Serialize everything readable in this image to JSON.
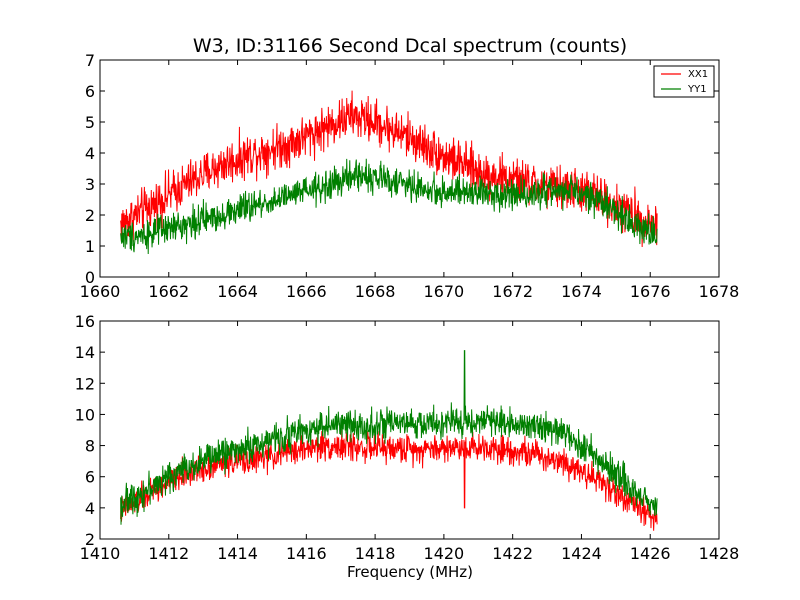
{
  "chart_data": [
    {
      "type": "line",
      "title": "W3, ID:31166 Second Dcal spectrum (counts)",
      "xlabel": "",
      "ylabel": "",
      "xlim": [
        1660,
        1678
      ],
      "ylim": [
        0,
        7
      ],
      "xticks": [
        1660,
        1662,
        1664,
        1666,
        1668,
        1670,
        1672,
        1674,
        1676,
        1678
      ],
      "yticks": [
        0,
        1,
        2,
        3,
        4,
        5,
        6,
        7
      ],
      "x_range": [
        1660.6,
        1676.2
      ],
      "grid": false,
      "legend": {
        "placement": "top-right",
        "entries": [
          "XX1",
          "YY1"
        ]
      },
      "series": [
        {
          "name": "XX1",
          "color": "#ff0000",
          "noise": 0.35,
          "envelope_x": [
            1660.6,
            1661.5,
            1662.5,
            1663.5,
            1664.5,
            1665.5,
            1666.5,
            1667.3,
            1668.0,
            1669.0,
            1670.0,
            1671.0,
            1672.0,
            1673.0,
            1674.0,
            1674.7,
            1675.3,
            1676.2
          ],
          "envelope_y": [
            1.7,
            2.3,
            3.0,
            3.6,
            4.0,
            4.3,
            4.8,
            5.2,
            5.0,
            4.5,
            3.9,
            3.4,
            3.1,
            2.9,
            2.8,
            2.5,
            2.1,
            1.7
          ]
        },
        {
          "name": "YY1",
          "color": "#008000",
          "noise": 0.25,
          "envelope_x": [
            1660.6,
            1661.5,
            1662.5,
            1663.5,
            1664.5,
            1665.5,
            1666.5,
            1667.5,
            1668.5,
            1669.5,
            1670.5,
            1671.5,
            1672.5,
            1673.5,
            1674.5,
            1675.3,
            1676.2
          ],
          "envelope_y": [
            1.3,
            1.4,
            1.7,
            2.0,
            2.3,
            2.6,
            2.9,
            3.3,
            3.1,
            2.8,
            2.7,
            2.7,
            2.7,
            2.8,
            2.5,
            1.9,
            1.3
          ]
        }
      ]
    },
    {
      "type": "line",
      "title": "",
      "xlabel": "Frequency (MHz)",
      "ylabel": "",
      "xlim": [
        1410,
        1428
      ],
      "ylim": [
        2,
        16
      ],
      "xticks": [
        1410,
        1412,
        1414,
        1416,
        1418,
        1420,
        1422,
        1424,
        1426,
        1428
      ],
      "yticks": [
        2,
        4,
        6,
        8,
        10,
        12,
        14,
        16
      ],
      "x_range": [
        1410.6,
        1426.2
      ],
      "grid": false,
      "series": [
        {
          "name": "XX1",
          "color": "#ff0000",
          "noise": 0.45,
          "envelope_x": [
            1410.6,
            1411.5,
            1412.5,
            1413.5,
            1414.5,
            1415.5,
            1416.5,
            1417.5,
            1418.5,
            1419.5,
            1420.5,
            1421.5,
            1422.5,
            1423.5,
            1424.5,
            1425.3,
            1426.2
          ],
          "envelope_y": [
            3.8,
            5.0,
            6.2,
            6.9,
            7.1,
            7.6,
            8.0,
            7.9,
            7.8,
            7.8,
            7.9,
            7.9,
            7.5,
            7.0,
            5.8,
            4.5,
            3.3
          ],
          "spike": {
            "x": 1420.6,
            "y": 4.0
          }
        },
        {
          "name": "YY1",
          "color": "#008000",
          "noise": 0.5,
          "envelope_x": [
            1410.6,
            1411.5,
            1412.5,
            1413.5,
            1414.5,
            1415.5,
            1416.5,
            1417.5,
            1418.5,
            1419.5,
            1420.5,
            1421.5,
            1422.5,
            1423.5,
            1424.5,
            1425.3,
            1426.2
          ],
          "envelope_y": [
            4.2,
            5.3,
            6.6,
            7.5,
            8.0,
            8.7,
            9.3,
            9.3,
            9.3,
            9.4,
            9.5,
            9.6,
            9.4,
            8.8,
            7.2,
            5.5,
            4.0
          ],
          "spike": {
            "x": 1420.6,
            "y": 14.1
          }
        }
      ]
    }
  ]
}
